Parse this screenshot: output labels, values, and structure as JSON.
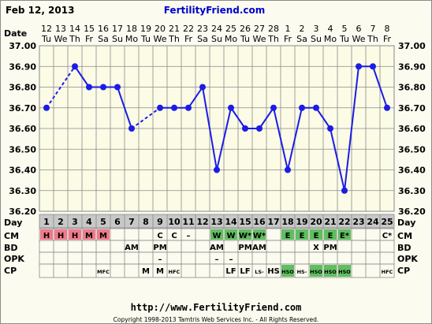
{
  "header": {
    "date_label": "Feb 12, 2013",
    "site_title": "FertilityFriend.com"
  },
  "row_labels": {
    "date": "Date",
    "day": "Day",
    "cm": "CM",
    "bd": "BD",
    "opk": "OPK",
    "cp": "CP"
  },
  "footer": {
    "url": "http://www.FertilityFriend.com",
    "copyright": "Copyright 1998-2013 Tamtris Web Services Inc. - All Rights Reserved."
  },
  "colors": {
    "line": "#1c1ce6",
    "grid": "#8a8a8a",
    "plot_bg": "#fbfbe6",
    "day_bg": "#c8c8c8",
    "cm_red": "#f07a8a",
    "cm_green": "#5fbf5f",
    "title": "#0000cc"
  },
  "chart_data": {
    "type": "line",
    "title": "",
    "xlabel": "",
    "ylabel": "",
    "ylim": [
      36.2,
      37.0
    ],
    "yticks": [
      "37.00",
      "36.90",
      "36.80",
      "36.70",
      "36.60",
      "36.50",
      "36.40",
      "36.30",
      "36.20"
    ],
    "dates": [
      "12",
      "13",
      "14",
      "15",
      "16",
      "17",
      "18",
      "19",
      "20",
      "21",
      "22",
      "23",
      "24",
      "25",
      "26",
      "27",
      "28",
      "1",
      "2",
      "3",
      "4",
      "5",
      "6",
      "7",
      "8"
    ],
    "weekdays": [
      "Tu",
      "We",
      "Th",
      "Fr",
      "Sa",
      "Su",
      "Mo",
      "Tu",
      "We",
      "Th",
      "Fr",
      "Sa",
      "Su",
      "Mo",
      "Tu",
      "We",
      "Th",
      "Fr",
      "Sa",
      "Su",
      "Mo",
      "Tu",
      "We",
      "Th",
      "Fr"
    ],
    "days": [
      "1",
      "2",
      "3",
      "4",
      "5",
      "6",
      "7",
      "8",
      "9",
      "10",
      "11",
      "12",
      "13",
      "14",
      "15",
      "16",
      "17",
      "18",
      "19",
      "20",
      "21",
      "22",
      "23",
      "24",
      "25"
    ],
    "temps": [
      36.7,
      null,
      36.9,
      36.8,
      36.8,
      36.8,
      36.6,
      null,
      36.7,
      36.7,
      36.7,
      36.8,
      36.4,
      36.7,
      36.6,
      36.6,
      36.7,
      36.4,
      36.7,
      36.7,
      36.6,
      36.3,
      36.9,
      36.9,
      36.7
    ],
    "cm": [
      "H",
      "H",
      "H",
      "M",
      "M",
      "",
      "",
      "",
      "C",
      "C",
      "–",
      "",
      "W",
      "W",
      "W*",
      "W*",
      "",
      "E",
      "E",
      "E",
      "E",
      "E*",
      "",
      "",
      "C*"
    ],
    "cm_colors": [
      "red",
      "red",
      "red",
      "red",
      "red",
      "",
      "",
      "",
      "",
      "",
      "",
      "",
      "green",
      "green",
      "green",
      "green",
      "",
      "green",
      "green",
      "green",
      "green",
      "green",
      "",
      "",
      ""
    ],
    "bd": [
      "",
      "",
      "",
      "",
      "",
      "",
      "AM",
      "",
      "PM",
      "",
      "",
      "",
      "AM",
      "",
      "PM",
      "AM",
      "",
      "",
      "",
      "X",
      "PM",
      "",
      "",
      "",
      ""
    ],
    "opk": [
      "",
      "",
      "",
      "",
      "",
      "",
      "",
      "",
      "–",
      "",
      "",
      "",
      "–",
      "–",
      "",
      "",
      "",
      "",
      "",
      "",
      "",
      "",
      "",
      "",
      ""
    ],
    "cp": [
      "",
      "",
      "",
      "",
      "MFC",
      "",
      "",
      "M",
      "M",
      "HFC",
      "",
      "",
      "",
      "LF",
      "LF",
      "LS-",
      "HS",
      "HSO",
      "HS-",
      "HSO",
      "HSO",
      "HSO",
      "",
      "",
      "HFC"
    ],
    "cp_colors": [
      "",
      "",
      "",
      "",
      "",
      "",
      "",
      "",
      "",
      "",
      "",
      "",
      "",
      "",
      "",
      "",
      "",
      "green",
      "",
      "green",
      "green",
      "green",
      "",
      "",
      ""
    ]
  }
}
